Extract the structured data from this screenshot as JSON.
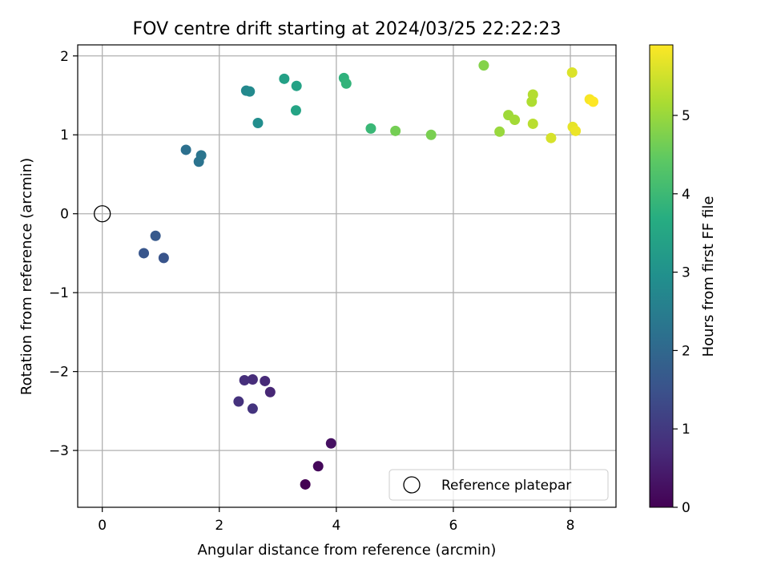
{
  "chart_data": {
    "type": "scatter",
    "title": "FOV centre drift starting at 2024/03/25 22:22:23",
    "xlabel": "Angular distance from reference (arcmin)",
    "ylabel": "Rotation from reference (arcmin)",
    "xlim": [
      -0.42,
      8.78
    ],
    "ylim": [
      -3.72,
      2.14
    ],
    "xticks": [
      0,
      2,
      4,
      6,
      8
    ],
    "yticks": [
      -3,
      -2,
      -1,
      0,
      1,
      2
    ],
    "grid": true,
    "legend": {
      "placement": "lower-right",
      "entries": [
        "Reference platepar"
      ]
    },
    "reference_point": {
      "x": 0,
      "y": 0,
      "label": "Reference platepar"
    },
    "colorbar": {
      "label": "Hours from first FF file",
      "range": [
        0,
        5.9
      ],
      "ticks": [
        0,
        1,
        2,
        3,
        4,
        5
      ],
      "colormap": "viridis"
    },
    "points": [
      {
        "x": 3.47,
        "y": -3.43,
        "hours": 0.0
      },
      {
        "x": 3.69,
        "y": -3.2,
        "hours": 0.12
      },
      {
        "x": 3.91,
        "y": -2.91,
        "hours": 0.25
      },
      {
        "x": 2.87,
        "y": -2.26,
        "hours": 0.65
      },
      {
        "x": 2.78,
        "y": -2.12,
        "hours": 0.7
      },
      {
        "x": 2.57,
        "y": -2.1,
        "hours": 0.75
      },
      {
        "x": 2.43,
        "y": -2.11,
        "hours": 0.8
      },
      {
        "x": 2.33,
        "y": -2.38,
        "hours": 0.85
      },
      {
        "x": 2.57,
        "y": -2.47,
        "hours": 0.9
      },
      {
        "x": 1.05,
        "y": -0.56,
        "hours": 1.55
      },
      {
        "x": 0.71,
        "y": -0.5,
        "hours": 1.6
      },
      {
        "x": 0.91,
        "y": -0.28,
        "hours": 1.65
      },
      {
        "x": 1.43,
        "y": 0.81,
        "hours": 2.2
      },
      {
        "x": 1.65,
        "y": 0.66,
        "hours": 2.25
      },
      {
        "x": 1.69,
        "y": 0.74,
        "hours": 2.3
      },
      {
        "x": 2.46,
        "y": 1.56,
        "hours": 2.75
      },
      {
        "x": 2.52,
        "y": 1.55,
        "hours": 2.8
      },
      {
        "x": 2.66,
        "y": 1.15,
        "hours": 2.9
      },
      {
        "x": 3.11,
        "y": 1.71,
        "hours": 3.35
      },
      {
        "x": 3.32,
        "y": 1.62,
        "hours": 3.4
      },
      {
        "x": 3.31,
        "y": 1.31,
        "hours": 3.45
      },
      {
        "x": 4.13,
        "y": 1.72,
        "hours": 3.8
      },
      {
        "x": 4.17,
        "y": 1.65,
        "hours": 3.85
      },
      {
        "x": 4.59,
        "y": 1.08,
        "hours": 3.95
      },
      {
        "x": 5.01,
        "y": 1.05,
        "hours": 4.65
      },
      {
        "x": 5.62,
        "y": 1.0,
        "hours": 4.7
      },
      {
        "x": 6.52,
        "y": 1.88,
        "hours": 4.8
      },
      {
        "x": 6.79,
        "y": 1.04,
        "hours": 5.0
      },
      {
        "x": 6.94,
        "y": 1.25,
        "hours": 5.05
      },
      {
        "x": 7.05,
        "y": 1.19,
        "hours": 5.1
      },
      {
        "x": 7.34,
        "y": 1.42,
        "hours": 5.2
      },
      {
        "x": 7.36,
        "y": 1.51,
        "hours": 5.25
      },
      {
        "x": 7.36,
        "y": 1.14,
        "hours": 5.3
      },
      {
        "x": 7.67,
        "y": 0.96,
        "hours": 5.55
      },
      {
        "x": 8.03,
        "y": 1.79,
        "hours": 5.6
      },
      {
        "x": 8.04,
        "y": 1.1,
        "hours": 5.7
      },
      {
        "x": 8.09,
        "y": 1.05,
        "hours": 5.75
      },
      {
        "x": 8.33,
        "y": 1.45,
        "hours": 5.85
      },
      {
        "x": 8.39,
        "y": 1.42,
        "hours": 5.9
      }
    ]
  }
}
